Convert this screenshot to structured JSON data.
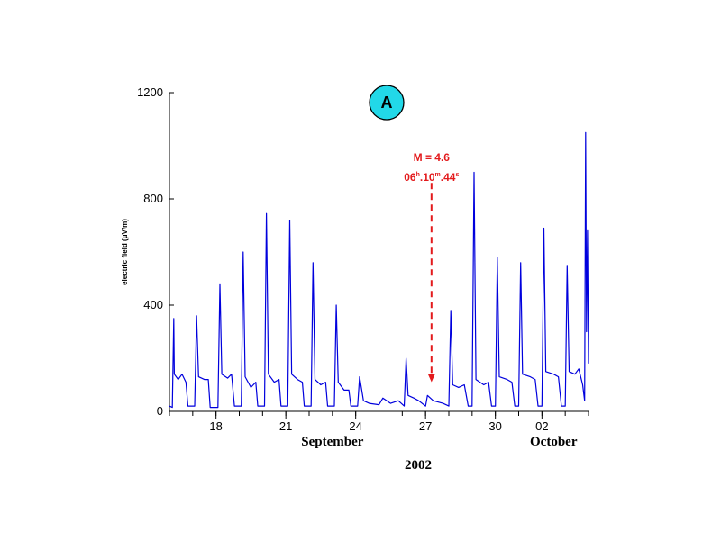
{
  "chart_data": {
    "type": "line",
    "title": "",
    "ylabel": "electric field (μV/m)",
    "ylim": [
      0,
      1200
    ],
    "yticks": [
      0,
      400,
      800,
      1200
    ],
    "xlim": [
      "2002-09-16T00:00",
      "2002-10-04T00:00"
    ],
    "xticks": [
      {
        "date": "2002-09-18",
        "label": "18"
      },
      {
        "date": "2002-09-21",
        "label": "21"
      },
      {
        "date": "2002-09-24",
        "label": "24"
      },
      {
        "date": "2002-09-27",
        "label": "27"
      },
      {
        "date": "2002-09-30",
        "label": "30"
      },
      {
        "date": "2002-10-02",
        "label": "02"
      }
    ],
    "month_labels": [
      {
        "date": "2002-09-23",
        "label": "September"
      },
      {
        "date": "2002-10-02T12:00",
        "label": "October"
      }
    ],
    "year_label": "2002",
    "panel_letter": "A",
    "grid": false,
    "annotation": {
      "date": "2002-09-27T06:10",
      "magnitude_text": "M = 4.6",
      "time_main": "06",
      "h_sup": "h",
      "time_min": ".10",
      "m_sup": "m",
      "time_sec": ".44",
      "s_sup": "s",
      "arrow_top": 860,
      "arrow_bottom": 110
    },
    "series": [
      {
        "color": "#0000dd",
        "points": [
          [
            "2002-09-16T00:00",
            20
          ],
          [
            "2002-09-16T03:00",
            15
          ],
          [
            "2002-09-16T04:30",
            350
          ],
          [
            "2002-09-16T05:00",
            140
          ],
          [
            "2002-09-16T09:00",
            120
          ],
          [
            "2002-09-16T13:00",
            140
          ],
          [
            "2002-09-16T17:00",
            110
          ],
          [
            "2002-09-16T19:00",
            20
          ],
          [
            "2002-09-17T02:00",
            20
          ],
          [
            "2002-09-17T04:00",
            360
          ],
          [
            "2002-09-17T06:00",
            130
          ],
          [
            "2002-09-17T12:00",
            120
          ],
          [
            "2002-09-17T16:00",
            120
          ],
          [
            "2002-09-17T18:00",
            15
          ],
          [
            "2002-09-18T02:00",
            15
          ],
          [
            "2002-09-18T04:00",
            480
          ],
          [
            "2002-09-18T06:00",
            140
          ],
          [
            "2002-09-18T12:00",
            125
          ],
          [
            "2002-09-18T16:00",
            140
          ],
          [
            "2002-09-18T19:00",
            20
          ],
          [
            "2002-09-19T02:00",
            20
          ],
          [
            "2002-09-19T04:00",
            600
          ],
          [
            "2002-09-19T06:00",
            130
          ],
          [
            "2002-09-19T12:00",
            90
          ],
          [
            "2002-09-19T17:00",
            110
          ],
          [
            "2002-09-19T19:00",
            20
          ],
          [
            "2002-09-20T02:00",
            20
          ],
          [
            "2002-09-20T04:00",
            745
          ],
          [
            "2002-09-20T06:00",
            140
          ],
          [
            "2002-09-20T12:00",
            110
          ],
          [
            "2002-09-20T17:00",
            120
          ],
          [
            "2002-09-20T19:00",
            20
          ],
          [
            "2002-09-21T02:00",
            20
          ],
          [
            "2002-09-21T04:00",
            720
          ],
          [
            "2002-09-21T06:00",
            140
          ],
          [
            "2002-09-21T12:00",
            120
          ],
          [
            "2002-09-21T17:00",
            110
          ],
          [
            "2002-09-21T19:00",
            20
          ],
          [
            "2002-09-22T02:00",
            20
          ],
          [
            "2002-09-22T04:00",
            560
          ],
          [
            "2002-09-22T06:00",
            120
          ],
          [
            "2002-09-22T12:00",
            100
          ],
          [
            "2002-09-22T17:00",
            110
          ],
          [
            "2002-09-22T19:00",
            20
          ],
          [
            "2002-09-23T02:00",
            20
          ],
          [
            "2002-09-23T04:00",
            400
          ],
          [
            "2002-09-23T06:00",
            110
          ],
          [
            "2002-09-23T12:00",
            80
          ],
          [
            "2002-09-23T17:00",
            80
          ],
          [
            "2002-09-23T19:00",
            20
          ],
          [
            "2002-09-24T02:00",
            20
          ],
          [
            "2002-09-24T04:00",
            130
          ],
          [
            "2002-09-24T08:00",
            40
          ],
          [
            "2002-09-24T14:00",
            30
          ],
          [
            "2002-09-25T00:00",
            25
          ],
          [
            "2002-09-25T04:00",
            50
          ],
          [
            "2002-09-25T12:00",
            30
          ],
          [
            "2002-09-25T20:00",
            40
          ],
          [
            "2002-09-26T02:00",
            20
          ],
          [
            "2002-09-26T04:00",
            200
          ],
          [
            "2002-09-26T06:00",
            60
          ],
          [
            "2002-09-26T12:00",
            50
          ],
          [
            "2002-09-26T17:00",
            40
          ],
          [
            "2002-09-27T00:00",
            20
          ],
          [
            "2002-09-27T02:00",
            60
          ],
          [
            "2002-09-27T08:00",
            40
          ],
          [
            "2002-09-27T18:00",
            30
          ],
          [
            "2002-09-28T00:00",
            20
          ],
          [
            "2002-09-28T02:00",
            380
          ],
          [
            "2002-09-28T04:00",
            100
          ],
          [
            "2002-09-28T10:00",
            90
          ],
          [
            "2002-09-28T16:00",
            100
          ],
          [
            "2002-09-28T20:00",
            20
          ],
          [
            "2002-09-29T00:00",
            20
          ],
          [
            "2002-09-29T02:00",
            900
          ],
          [
            "2002-09-29T04:00",
            120
          ],
          [
            "2002-09-29T12:00",
            100
          ],
          [
            "2002-09-29T17:00",
            110
          ],
          [
            "2002-09-29T20:00",
            20
          ],
          [
            "2002-09-30T00:00",
            20
          ],
          [
            "2002-09-30T02:00",
            580
          ],
          [
            "2002-09-30T04:00",
            130
          ],
          [
            "2002-09-30T12:00",
            120
          ],
          [
            "2002-09-30T17:00",
            110
          ],
          [
            "2002-09-30T20:00",
            20
          ],
          [
            "2002-10-01T00:00",
            20
          ],
          [
            "2002-10-01T02:00",
            560
          ],
          [
            "2002-10-01T04:00",
            140
          ],
          [
            "2002-10-01T12:00",
            130
          ],
          [
            "2002-10-01T17:00",
            120
          ],
          [
            "2002-10-01T20:00",
            20
          ],
          [
            "2002-10-02T00:00",
            20
          ],
          [
            "2002-10-02T02:00",
            690
          ],
          [
            "2002-10-02T04:00",
            150
          ],
          [
            "2002-10-02T12:00",
            140
          ],
          [
            "2002-10-02T17:00",
            130
          ],
          [
            "2002-10-02T20:00",
            20
          ],
          [
            "2002-10-03T00:00",
            20
          ],
          [
            "2002-10-03T02:00",
            550
          ],
          [
            "2002-10-03T04:00",
            150
          ],
          [
            "2002-10-03T10:00",
            140
          ],
          [
            "2002-10-03T14:00",
            160
          ],
          [
            "2002-10-03T18:00",
            100
          ],
          [
            "2002-10-03T20:00",
            40
          ],
          [
            "2002-10-03T21:00",
            1050
          ],
          [
            "2002-10-03T22:00",
            300
          ],
          [
            "2002-10-03T23:00",
            680
          ],
          [
            "2002-10-04T00:00",
            180
          ]
        ]
      }
    ]
  }
}
